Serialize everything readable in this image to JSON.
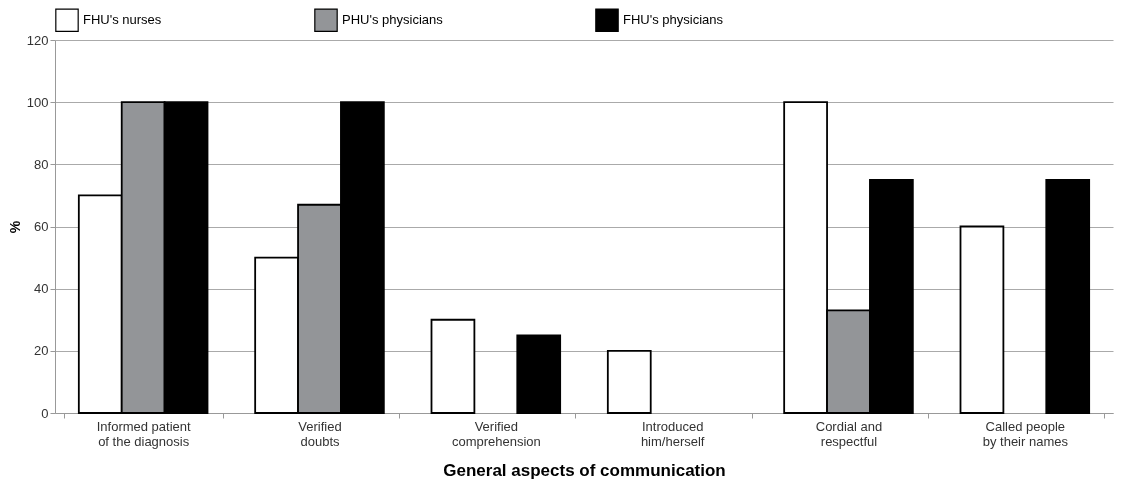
{
  "chart_data": {
    "type": "bar",
    "categories": [
      "Informed patient of the diagnosis",
      "Verified doubts",
      "Verified comprehension",
      "Introduced him/herself",
      "Cordial and respectful",
      "Called people by their names"
    ],
    "series": [
      {
        "name": "FHU's nurses",
        "color": "#ffffff",
        "values": [
          70,
          50,
          30,
          20,
          100,
          60
        ]
      },
      {
        "name": "PHU's physicians",
        "color": "#939598",
        "values": [
          100,
          67,
          null,
          null,
          33,
          null
        ]
      },
      {
        "name": "FHU's physicians",
        "color": "#000000",
        "values": [
          100,
          100,
          25,
          null,
          75,
          75
        ]
      }
    ],
    "xlabel": "General aspects of communication",
    "ylabel": "%",
    "ylim": [
      0,
      120
    ],
    "yticks": [
      0,
      20,
      40,
      60,
      80,
      100,
      120
    ],
    "grid": "y",
    "legend": "top"
  }
}
